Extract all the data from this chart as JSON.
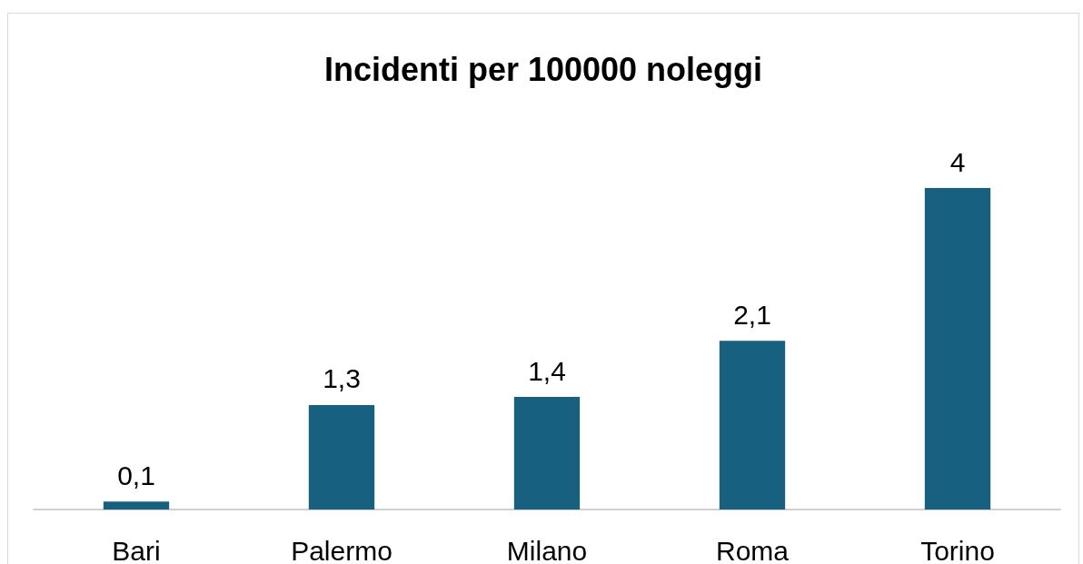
{
  "chart_data": {
    "type": "bar",
    "title": "Incidenti per 100000 noleggi",
    "categories": [
      "Bari",
      "Palermo",
      "Milano",
      "Roma",
      "Torino"
    ],
    "values": [
      0.1,
      1.3,
      1.4,
      2.1,
      4
    ],
    "value_labels": [
      "0,1",
      "1,3",
      "1,4",
      "2,1",
      "4"
    ],
    "color": "#17607f"
  }
}
